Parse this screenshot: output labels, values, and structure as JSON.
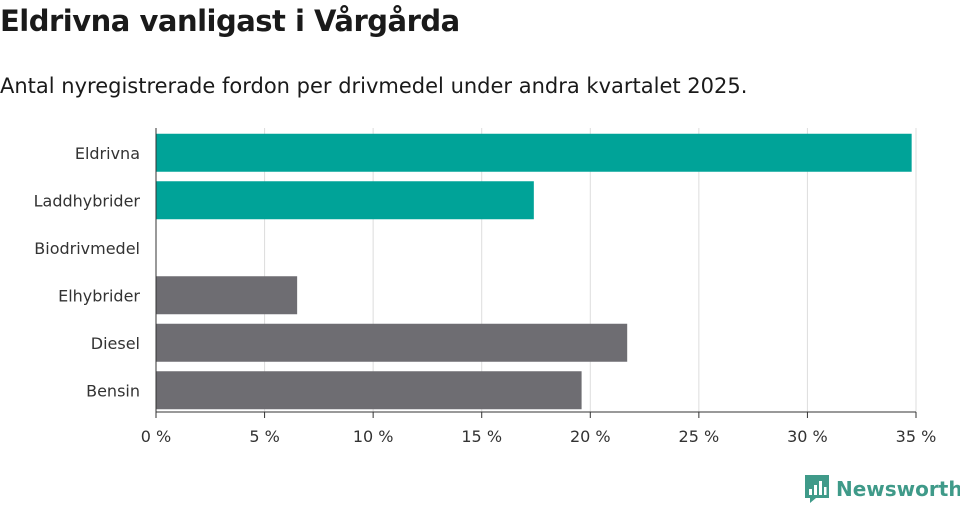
{
  "header": {
    "title": "Eldrivna vanligast i Vårgårda",
    "subtitle": "Antal nyregistrerade fordon per drivmedel under andra kvartalet 2025."
  },
  "brand": {
    "name": "Newsworthy",
    "color": "#3f9a89",
    "icon": "newsworthy-logo-icon"
  },
  "colors": {
    "electric": "#00a398",
    "fossil": "#6e6d72",
    "grid": "#dddddd",
    "axis": "#333333"
  },
  "chart_data": {
    "type": "bar",
    "orientation": "horizontal",
    "title": "Eldrivna vanligast i Vårgårda",
    "subtitle": "Antal nyregistrerade fordon per drivmedel under andra kvartalet 2025.",
    "categories": [
      "Eldrivna",
      "Laddhybrider",
      "Biodrivmedel",
      "Elhybrider",
      "Diesel",
      "Bensin"
    ],
    "values": [
      34.8,
      17.4,
      0,
      6.5,
      21.7,
      19.6
    ],
    "groups": [
      "electric",
      "electric",
      "electric",
      "fossil",
      "fossil",
      "fossil"
    ],
    "unit": "%",
    "xlim": [
      0,
      35
    ],
    "xticks": [
      0,
      5,
      10,
      15,
      20,
      25,
      30,
      35
    ],
    "xtick_labels": [
      "0 %",
      "5 %",
      "10 %",
      "15 %",
      "20 %",
      "25 %",
      "30 %",
      "35 %"
    ],
    "xlabel": "",
    "ylabel": "",
    "grid": true
  }
}
